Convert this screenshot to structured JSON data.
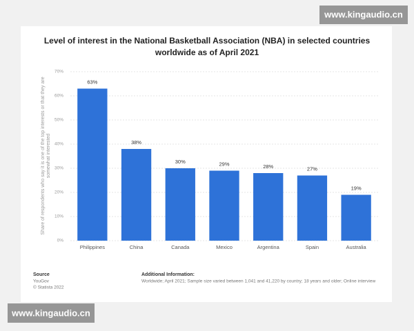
{
  "chart_data": {
    "type": "bar",
    "title": [
      "Level of interest in the National Basketball Association (NBA) in selected countries",
      "worldwide as of April 2021"
    ],
    "ylabel": [
      "Share of respondents who say it is one of the top interests or that they are",
      "somewhat interested"
    ],
    "categories": [
      "Philippines",
      "China",
      "Canada",
      "Mexico",
      "Argentina",
      "Spain",
      "Australia"
    ],
    "values": [
      63,
      38,
      30,
      29,
      28,
      27,
      19
    ],
    "value_labels": [
      "63%",
      "38%",
      "30%",
      "29%",
      "28%",
      "27%",
      "19%"
    ],
    "color": "#2e72d8",
    "ylim": [
      0,
      70
    ],
    "yticks": [
      {
        "value": 0,
        "label": "0%"
      },
      {
        "value": 10,
        "label": "10%"
      },
      {
        "value": 20,
        "label": "20%"
      },
      {
        "value": 30,
        "label": "30%"
      },
      {
        "value": 40,
        "label": "40%"
      },
      {
        "value": 50,
        "label": "50%"
      },
      {
        "value": 60,
        "label": "60%"
      },
      {
        "value": 70,
        "label": "70%"
      }
    ],
    "grid": true
  },
  "source": {
    "heading": "Source",
    "lines": [
      "YouGov",
      "© Statista 2022"
    ]
  },
  "additional_information": {
    "heading": "Additional Information:",
    "text": "Worldwide; April 2021; Sample size varied between 1,041 and 41,220 by country; 18 years and older; Online interview"
  },
  "watermarks": [
    "www.kingaudio.cn",
    "www.kingaudio.cn"
  ]
}
